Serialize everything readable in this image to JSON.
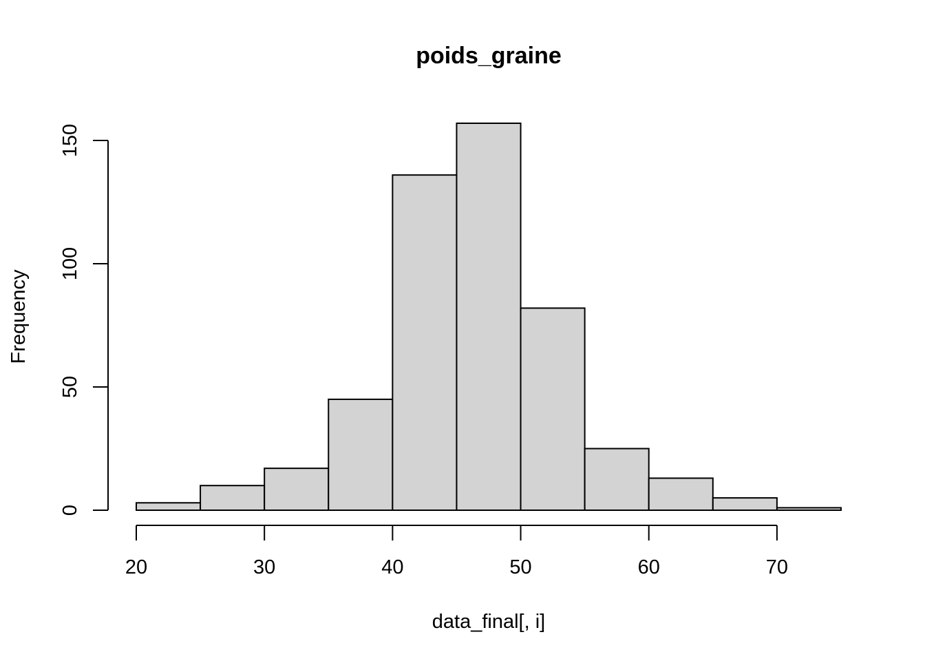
{
  "chart_data": {
    "type": "bar",
    "title": "poids_graine",
    "xlabel": "data_final[, i]",
    "ylabel": "Frequency",
    "bins": [
      {
        "from": 20,
        "to": 25,
        "count": 3
      },
      {
        "from": 25,
        "to": 30,
        "count": 10
      },
      {
        "from": 30,
        "to": 35,
        "count": 17
      },
      {
        "from": 35,
        "to": 40,
        "count": 45
      },
      {
        "from": 40,
        "to": 45,
        "count": 136
      },
      {
        "from": 45,
        "to": 50,
        "count": 157
      },
      {
        "from": 50,
        "to": 55,
        "count": 82
      },
      {
        "from": 55,
        "to": 60,
        "count": 25
      },
      {
        "from": 60,
        "to": 65,
        "count": 13
      },
      {
        "from": 65,
        "to": 70,
        "count": 5
      },
      {
        "from": 70,
        "to": 75,
        "count": 1
      }
    ],
    "xticks": [
      "20",
      "30",
      "40",
      "50",
      "60",
      "70"
    ],
    "yticks": [
      "0",
      "50",
      "100",
      "150"
    ],
    "xlim": [
      20,
      75
    ],
    "ylim": [
      0,
      157
    ],
    "bar_fill": "#d3d3d3",
    "bar_stroke": "#000000",
    "grid": false,
    "legend": "none"
  }
}
